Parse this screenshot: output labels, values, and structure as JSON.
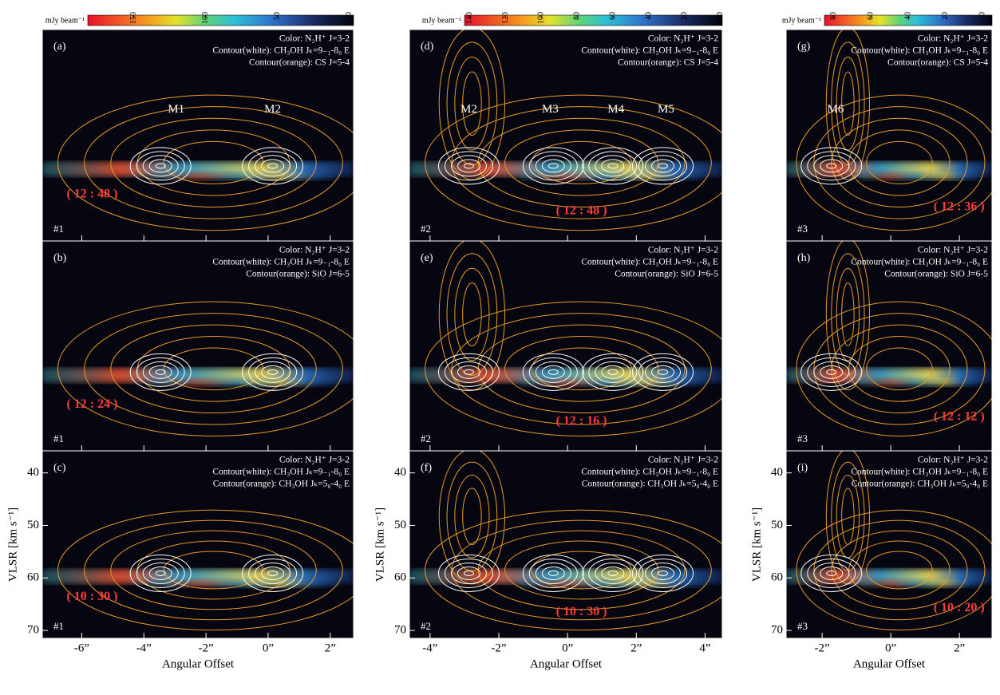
{
  "y_axis": {
    "label": "VLSR [km s⁻¹]",
    "ylim": [
      35.8,
      71.5
    ],
    "yticks": [
      40,
      50,
      60,
      70
    ]
  },
  "columns": [
    {
      "colorbar": {
        "unit": "mJy beam⁻¹",
        "lim": [
          182,
          -3
        ],
        "ticks": [
          150,
          100,
          50,
          0
        ]
      },
      "xlim": [
        -7.27,
        2.75
      ],
      "xticks": [
        {
          "value": -6,
          "label": "-6”"
        },
        {
          "value": -4,
          "label": "-4”"
        },
        {
          "value": -2,
          "label": "-2”"
        },
        {
          "value": 0,
          "label": "0”"
        },
        {
          "value": 2,
          "label": "2”"
        }
      ],
      "xlabel": "Angular Offset",
      "panels": [
        {
          "label": "(a)",
          "color": "Color: N₂H⁺ J=3-2",
          "contour_white": "Contour(white): CH₃OH Jₖ=9₋₁-8₀ E",
          "contour_orange": "Contour(orange): CS J=5-4",
          "time": "( 12 : 48 )",
          "region": "#1",
          "sources": [
            "M1",
            "M2"
          ]
        },
        {
          "label": "(b)",
          "color": "Color: N₂H⁺ J=3-2",
          "contour_white": "Contour(white): CH₃OH Jₖ=9₋₁-8₀ E",
          "contour_orange": "Contour(orange): SiO J=6-5",
          "time": "( 12 : 24 )",
          "region": "#1"
        },
        {
          "label": "(c)",
          "color": "Color: N₂H⁺ J=3-2",
          "contour_white": "Contour(white): CH₃OH Jₖ=9₋₁-8₀ E",
          "contour_orange": "Contour(orange): CH₃OH Jₖ=5₀-4₀ E",
          "time": "( 10 : 30 )",
          "region": "#1"
        }
      ]
    },
    {
      "colorbar": {
        "unit": "mJy beam⁻¹",
        "lim": [
          143,
          -1
        ],
        "ticks": [
          140,
          120,
          100,
          80,
          60,
          40,
          20,
          0
        ]
      },
      "xlim": [
        -4.6,
        4.5
      ],
      "xticks": [
        {
          "value": -4,
          "label": "-4”"
        },
        {
          "value": -2,
          "label": "-2”"
        },
        {
          "value": 0,
          "label": "0”"
        },
        {
          "value": 2,
          "label": "2”"
        },
        {
          "value": 4,
          "label": "4”"
        }
      ],
      "xlabel": "Angular Offset",
      "panels": [
        {
          "label": "(d)",
          "color": "Color: N₂H⁺ J=3-2",
          "contour_white": "Contour(white): CH₃OH Jₖ=9₋₁-8₀ E",
          "contour_orange": "Contour(orange): CS J=5-4",
          "time": "( 12 : 48 )",
          "region": "#2",
          "sources": [
            "M2",
            "M3",
            "M4",
            "M5"
          ]
        },
        {
          "label": "(e)",
          "color": "Color: N₂H⁺ J=3-2",
          "contour_white": "Contour(white): CH₃OH Jₖ=9₋₁-8₀ E",
          "contour_orange": "Contour(orange): SiO J=6-5",
          "time": "( 12 : 16 )",
          "region": "#2"
        },
        {
          "label": "(f)",
          "color": "Color: N₂H⁺ J=3-2",
          "contour_white": "Contour(white): CH₃OH Jₖ=9₋₁-8₀ E",
          "contour_orange": "Contour(orange): CH₃OH Jₖ=5₀-4₀ E",
          "time": "( 10 : 30 )",
          "region": "#2"
        }
      ]
    },
    {
      "colorbar": {
        "unit": "mJy beam⁻¹",
        "lim": [
          85,
          -5
        ],
        "ticks": [
          80,
          60,
          40,
          20,
          0
        ]
      },
      "xlim": [
        -3.05,
        2.95
      ],
      "xticks": [
        {
          "value": -2,
          "label": "-2”"
        },
        {
          "value": 0,
          "label": "0”"
        },
        {
          "value": 2,
          "label": "2”"
        }
      ],
      "xlabel": "Angular Offset",
      "panels": [
        {
          "label": "(g)",
          "color": "Color: N₂H⁺ J=3-2",
          "contour_white": "Contour(white): CH₃OH Jₖ=9₋₁-8₀ E",
          "contour_orange": "Contour(orange): CS J=5-4",
          "time": "( 12 : 36 )",
          "region": "#3",
          "sources": [
            "M6"
          ]
        },
        {
          "label": "(h)",
          "color": "Color: N₂H⁺ J=3-2",
          "contour_white": "Contour(white): CH₃OH Jₖ=9₋₁-8₀ E",
          "contour_orange": "Contour(orange): SiO J=6-5",
          "time": "( 12 : 12 )",
          "region": "#3"
        },
        {
          "label": "(i)",
          "color": "Color: N₂H⁺ J=3-2",
          "contour_white": "Contour(white): CH₃OH Jₖ=9₋₁-8₀ E",
          "contour_orange": "Contour(orange): CH₃OH Jₖ=5₀-4₀ E",
          "time": "( 10 : 20 )",
          "region": "#3"
        }
      ]
    }
  ]
}
